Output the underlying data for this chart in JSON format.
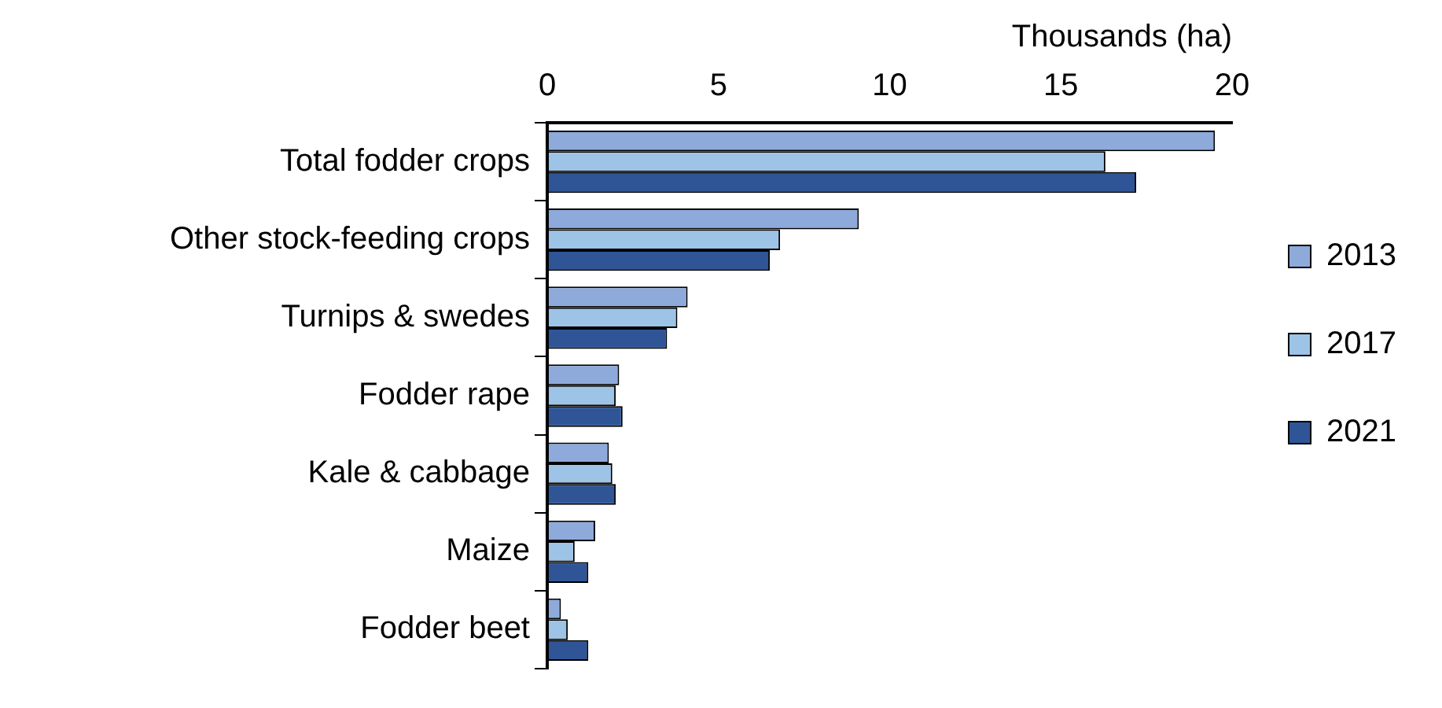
{
  "chart_data": {
    "type": "bar",
    "orientation": "horizontal",
    "xlabel": "Thousands (ha)",
    "categories": [
      "Total fodder crops",
      "Other stock-feeding crops",
      "Turnips & swedes",
      "Fodder rape",
      "Kale & cabbage",
      "Maize",
      "Fodder beet"
    ],
    "series": [
      {
        "name": "2013",
        "color": "#8eaadb",
        "values": [
          19.5,
          9.1,
          4.1,
          2.1,
          1.8,
          1.4,
          0.4
        ]
      },
      {
        "name": "2017",
        "color": "#9dc3e6",
        "values": [
          16.3,
          6.8,
          3.8,
          2.0,
          1.9,
          0.8,
          0.6
        ]
      },
      {
        "name": "2021",
        "color": "#2f5597",
        "values": [
          17.2,
          6.5,
          3.5,
          2.2,
          2.0,
          1.2,
          1.2
        ]
      }
    ],
    "xlim": [
      0,
      20
    ],
    "xticks": [
      0,
      5,
      10,
      15,
      20
    ],
    "grid": false,
    "legend": "right"
  }
}
